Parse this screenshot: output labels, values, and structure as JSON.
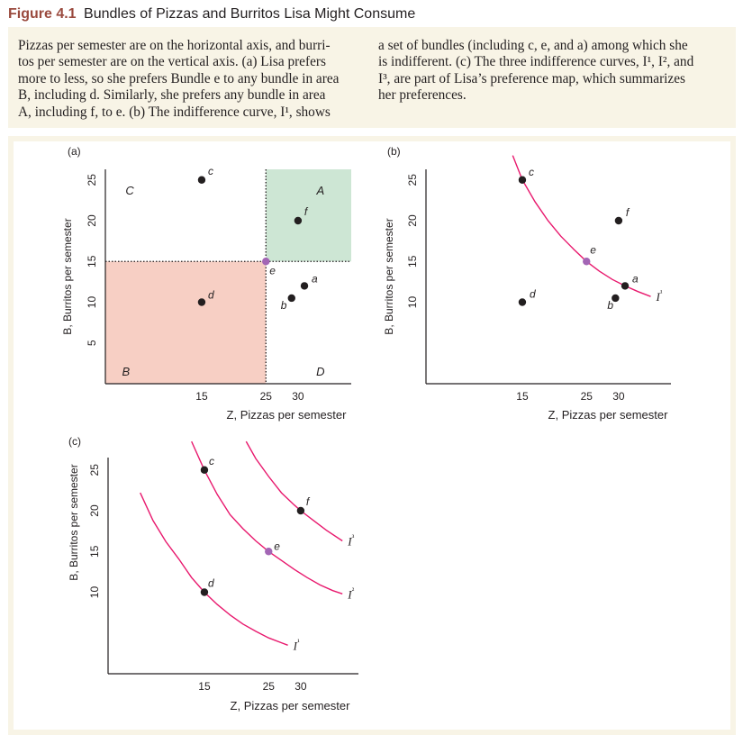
{
  "figure": {
    "number": "Figure 4.1",
    "title": "Bundles of Pizzas and Burritos Lisa Might Consume"
  },
  "caption": {
    "left_lines": [
      "Pizzas per semester are on the horizontal axis, and burri-",
      "tos per semester are on the vertical axis. (a) Lisa prefers",
      "more to less, so she prefers Bundle e to any bundle in area",
      "B, including d. Similarly, she prefers any bundle in area",
      "A, including f, to e. (b) The indifference curve, I¹, shows"
    ],
    "right_lines": [
      "a set of bundles (including c, e, and a) among which she",
      "is indifferent. (c) The three indifference curves, I¹, I², and",
      "I³, are part of Lisa’s preference map, which summarizes",
      "her preferences."
    ]
  },
  "colors": {
    "curve": "#e8186d",
    "point": "#231f20",
    "point_e": "#a366b5",
    "area_A": "#cde6d4",
    "area_B": "#f7cfc4",
    "caption_bg": "#f8f4e6",
    "title_number": "#9a4a3e"
  },
  "chart_data": [
    {
      "panel": "(a)",
      "type": "scatter",
      "xlabel": "Z, Pizzas per semester",
      "ylabel": "B, Burritos per semester",
      "xticks": [
        15,
        25,
        30
      ],
      "yticks": [
        5,
        10,
        15,
        20,
        25
      ],
      "xlim": [
        0,
        38
      ],
      "ylim": [
        0,
        26.5
      ],
      "points": [
        {
          "label": "c",
          "x": 15,
          "y": 25
        },
        {
          "label": "f",
          "x": 30,
          "y": 20
        },
        {
          "label": "e",
          "x": 25,
          "y": 15,
          "highlight": true
        },
        {
          "label": "d",
          "x": 15,
          "y": 10
        },
        {
          "label": "a",
          "x": 31,
          "y": 12
        },
        {
          "label": "b",
          "x": 29,
          "y": 10.5
        }
      ],
      "areas": [
        {
          "label": "A",
          "x_from": 25,
          "y_from": 15,
          "meaning": "preferred to e"
        },
        {
          "label": "B",
          "x_to": 25,
          "y_to": 15,
          "meaning": "e preferred"
        },
        {
          "label": "C"
        },
        {
          "label": "D"
        }
      ]
    },
    {
      "panel": "(b)",
      "type": "line",
      "xlabel": "Z, Pizzas per semester",
      "ylabel": "B, Burritos per semester",
      "xticks": [
        15,
        25,
        30
      ],
      "yticks": [
        10,
        15,
        20,
        25
      ],
      "xlim": [
        0,
        38
      ],
      "ylim": [
        0,
        26.5
      ],
      "series": [
        {
          "name": "I¹",
          "x": [
            13.5,
            15,
            17,
            19,
            21,
            23,
            25,
            27,
            29,
            31,
            33,
            35
          ],
          "y": [
            28,
            25,
            22.3,
            20,
            18.1,
            16.5,
            15,
            13.8,
            12.8,
            12,
            11.3,
            10.7
          ]
        }
      ],
      "points": [
        {
          "label": "c",
          "x": 15,
          "y": 25
        },
        {
          "label": "e",
          "x": 25,
          "y": 15,
          "highlight": true
        },
        {
          "label": "a",
          "x": 31,
          "y": 12
        },
        {
          "label": "f",
          "x": 30,
          "y": 20
        },
        {
          "label": "d",
          "x": 15,
          "y": 10
        },
        {
          "label": "b",
          "x": 29.5,
          "y": 10.5
        }
      ]
    },
    {
      "panel": "(c)",
      "type": "line",
      "xlabel": "Z, Pizzas per semester",
      "ylabel": "B, Burritos per semester",
      "xticks": [
        15,
        25,
        30
      ],
      "yticks": [
        10,
        15,
        20,
        25
      ],
      "xlim": [
        0,
        38
      ],
      "ylim": [
        0,
        26.5
      ],
      "series": [
        {
          "name": "I¹",
          "x": [
            5,
            7,
            9,
            11,
            13,
            15,
            17,
            19,
            21,
            23,
            25,
            27,
            28
          ],
          "y": [
            22.2,
            18.8,
            16.2,
            14.1,
            11.8,
            10,
            8.5,
            7.2,
            6.1,
            5.2,
            4.4,
            3.8,
            3.5
          ]
        },
        {
          "name": "I²",
          "x": [
            13,
            15,
            17,
            19,
            21,
            23,
            25,
            27,
            29,
            31,
            33,
            35,
            36.5
          ],
          "y": [
            28.5,
            25,
            22,
            19.5,
            17.8,
            16.3,
            15,
            13.9,
            12.8,
            11.8,
            10.9,
            10.2,
            9.8
          ]
        },
        {
          "name": "I³",
          "x": [
            21.5,
            23,
            25,
            27,
            29,
            30,
            32,
            34,
            36.5
          ],
          "y": [
            28.5,
            26.4,
            24.2,
            22.2,
            20.7,
            20,
            18.8,
            17.6,
            16.3
          ]
        }
      ],
      "points": [
        {
          "label": "c",
          "x": 15,
          "y": 25
        },
        {
          "label": "f",
          "x": 30,
          "y": 20
        },
        {
          "label": "e",
          "x": 25,
          "y": 15,
          "highlight": true
        },
        {
          "label": "d",
          "x": 15,
          "y": 10
        }
      ]
    }
  ]
}
